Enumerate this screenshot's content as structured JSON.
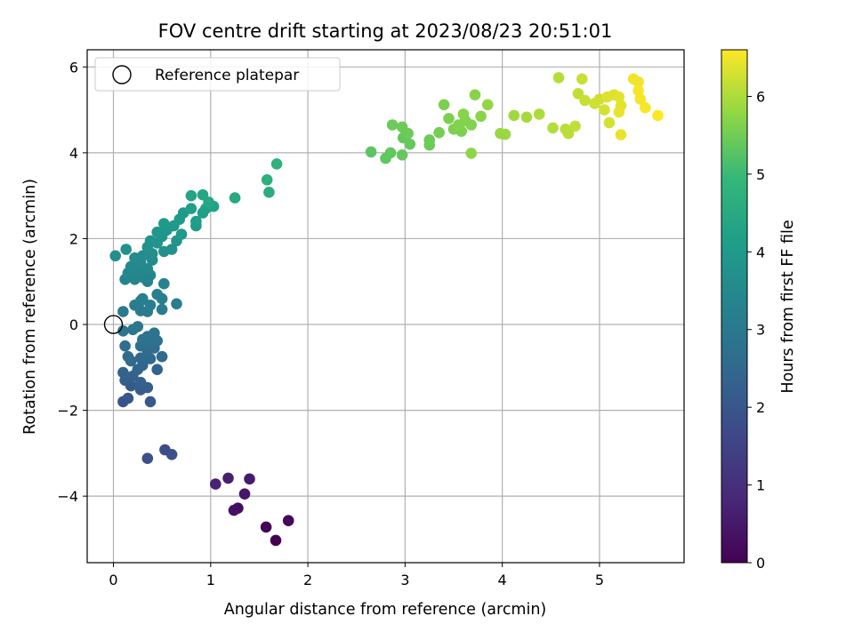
{
  "chart_data": {
    "type": "scatter",
    "title": "FOV centre drift starting at 2023/08/23 20:51:01",
    "xlabel": "Angular distance from reference (arcmin)",
    "ylabel": "Rotation from reference (arcmin)",
    "xlim": [
      -0.27,
      5.87
    ],
    "ylim": [
      -5.55,
      6.4
    ],
    "xticks": [
      0,
      1,
      2,
      3,
      4,
      5
    ],
    "yticks": [
      -4,
      -2,
      0,
      2,
      4,
      6
    ],
    "tick_labels_x": [
      "0",
      "1",
      "2",
      "3",
      "4",
      "5"
    ],
    "tick_labels_y": [
      "−4",
      "−2",
      "0",
      "2",
      "4",
      "6"
    ],
    "grid": true,
    "legend": {
      "position": "top-left",
      "entries": [
        "Reference platepar"
      ]
    },
    "colorbar": {
      "label": "Hours from first FF file",
      "colormap": "viridis",
      "range": [
        0,
        6.6
      ],
      "ticks": [
        0,
        1,
        2,
        3,
        4,
        5,
        6
      ],
      "tick_labels": [
        "0",
        "1",
        "2",
        "3",
        "4",
        "5",
        "6"
      ]
    },
    "reference_point": {
      "x": 0,
      "y": 0
    },
    "points": [
      [
        1.67,
        -5.03,
        0.0
      ],
      [
        1.57,
        -4.72,
        0.08
      ],
      [
        1.8,
        -4.57,
        0.15
      ],
      [
        1.28,
        -4.28,
        0.25
      ],
      [
        1.24,
        -4.33,
        0.33
      ],
      [
        1.35,
        -3.95,
        0.45
      ],
      [
        1.4,
        -3.6,
        0.55
      ],
      [
        1.18,
        -3.58,
        0.65
      ],
      [
        1.05,
        -3.72,
        0.75
      ],
      [
        0.53,
        -2.92,
        1.75
      ],
      [
        0.6,
        -3.03,
        1.8
      ],
      [
        0.35,
        -3.12,
        1.85
      ],
      [
        0.1,
        -1.8,
        1.95
      ],
      [
        0.15,
        -1.72,
        2.0
      ],
      [
        0.38,
        -1.8,
        2.05
      ],
      [
        0.18,
        -1.43,
        2.1
      ],
      [
        0.28,
        -1.52,
        2.15
      ],
      [
        0.35,
        -1.47,
        2.2
      ],
      [
        0.12,
        -1.3,
        2.25
      ],
      [
        0.2,
        -1.2,
        2.3
      ],
      [
        0.28,
        -1.35,
        2.3
      ],
      [
        0.1,
        -1.12,
        2.35
      ],
      [
        0.25,
        -1.05,
        2.4
      ],
      [
        0.45,
        -1.05,
        2.4
      ],
      [
        0.3,
        -0.95,
        2.45
      ],
      [
        0.18,
        -0.85,
        2.5
      ],
      [
        0.28,
        -0.78,
        2.5
      ],
      [
        0.5,
        -0.75,
        2.55
      ],
      [
        0.38,
        -0.8,
        2.55
      ],
      [
        0.15,
        -0.75,
        2.6
      ],
      [
        0.35,
        -0.6,
        2.6
      ],
      [
        0.42,
        -0.55,
        2.65
      ],
      [
        0.28,
        -0.5,
        2.7
      ],
      [
        0.12,
        -0.5,
        2.7
      ],
      [
        0.38,
        -0.4,
        2.75
      ],
      [
        0.45,
        -0.38,
        2.75
      ],
      [
        0.3,
        -0.35,
        2.8
      ],
      [
        0.35,
        -0.28,
        2.8
      ],
      [
        0.42,
        -0.2,
        2.85
      ],
      [
        0.1,
        -0.15,
        2.9
      ],
      [
        0.2,
        -0.12,
        2.9
      ],
      [
        0.25,
        -0.05,
        2.95
      ],
      [
        0.1,
        0.3,
        3.0
      ],
      [
        0.28,
        0.32,
        3.05
      ],
      [
        0.35,
        0.3,
        3.05
      ],
      [
        0.5,
        0.35,
        3.1
      ],
      [
        0.22,
        0.45,
        3.1
      ],
      [
        0.38,
        0.45,
        3.15
      ],
      [
        0.65,
        0.48,
        3.15
      ],
      [
        0.28,
        0.55,
        3.2
      ],
      [
        0.5,
        0.6,
        3.2
      ],
      [
        0.3,
        0.6,
        3.25
      ],
      [
        0.45,
        0.7,
        3.25
      ],
      [
        0.52,
        0.95,
        3.3
      ],
      [
        0.35,
        1.0,
        3.3
      ],
      [
        0.12,
        1.05,
        3.35
      ],
      [
        0.22,
        1.05,
        3.35
      ],
      [
        0.3,
        1.1,
        3.4
      ],
      [
        0.38,
        1.15,
        3.4
      ],
      [
        0.15,
        1.2,
        3.45
      ],
      [
        0.25,
        1.25,
        3.45
      ],
      [
        0.35,
        1.3,
        3.5
      ],
      [
        0.18,
        1.35,
        3.5
      ],
      [
        0.28,
        1.45,
        3.55
      ],
      [
        0.4,
        1.5,
        3.55
      ],
      [
        0.22,
        1.55,
        3.6
      ],
      [
        0.3,
        1.6,
        3.6
      ],
      [
        0.02,
        1.6,
        3.65
      ],
      [
        0.4,
        1.65,
        3.65
      ],
      [
        0.13,
        1.75,
        3.7
      ],
      [
        0.35,
        1.8,
        3.7
      ],
      [
        0.52,
        1.7,
        3.75
      ],
      [
        0.6,
        1.75,
        3.75
      ],
      [
        0.45,
        1.9,
        3.8
      ],
      [
        0.38,
        1.95,
        3.8
      ],
      [
        0.5,
        2.05,
        3.85
      ],
      [
        0.65,
        1.95,
        3.85
      ],
      [
        0.45,
        2.15,
        3.9
      ],
      [
        0.55,
        2.2,
        3.9
      ],
      [
        0.7,
        2.1,
        3.95
      ],
      [
        0.62,
        2.3,
        3.95
      ],
      [
        0.52,
        2.35,
        4.0
      ],
      [
        0.68,
        2.45,
        4.0
      ],
      [
        0.85,
        2.3,
        4.05
      ],
      [
        0.72,
        2.6,
        4.05
      ],
      [
        0.85,
        2.4,
        4.1
      ],
      [
        0.92,
        2.6,
        4.1
      ],
      [
        0.8,
        2.7,
        4.15
      ],
      [
        0.95,
        2.7,
        4.2
      ],
      [
        1.03,
        2.75,
        4.25
      ],
      [
        0.8,
        3.0,
        4.3
      ],
      [
        0.92,
        3.02,
        4.35
      ],
      [
        0.98,
        2.85,
        4.4
      ],
      [
        1.25,
        2.95,
        4.45
      ],
      [
        1.6,
        3.08,
        4.6
      ],
      [
        1.58,
        3.37,
        4.7
      ],
      [
        1.68,
        3.74,
        4.8
      ],
      [
        2.65,
        4.02,
        5.3
      ],
      [
        2.8,
        3.87,
        5.35
      ],
      [
        2.85,
        4.0,
        5.35
      ],
      [
        2.97,
        3.95,
        5.4
      ],
      [
        3.25,
        4.18,
        5.45
      ],
      [
        3.05,
        4.2,
        5.4
      ],
      [
        2.98,
        4.35,
        5.4
      ],
      [
        3.25,
        4.3,
        5.45
      ],
      [
        3.03,
        4.45,
        5.45
      ],
      [
        2.87,
        4.65,
        5.45
      ],
      [
        2.97,
        4.6,
        5.45
      ],
      [
        3.35,
        4.47,
        5.55
      ],
      [
        3.4,
        5.12,
        5.6
      ],
      [
        3.5,
        4.55,
        5.6
      ],
      [
        3.58,
        4.5,
        5.6
      ],
      [
        3.45,
        4.8,
        5.6
      ],
      [
        3.55,
        4.65,
        5.65
      ],
      [
        3.62,
        4.75,
        5.65
      ],
      [
        3.68,
        4.65,
        5.65
      ],
      [
        3.6,
        4.9,
        5.7
      ],
      [
        3.72,
        5.35,
        5.7
      ],
      [
        3.78,
        4.85,
        5.7
      ],
      [
        3.68,
        3.99,
        5.75
      ],
      [
        3.85,
        5.12,
        5.8
      ],
      [
        3.98,
        4.45,
        5.85
      ],
      [
        4.03,
        4.43,
        5.85
      ],
      [
        4.12,
        4.87,
        5.9
      ],
      [
        4.25,
        4.83,
        5.95
      ],
      [
        4.38,
        4.9,
        6.0
      ],
      [
        4.52,
        4.58,
        6.05
      ],
      [
        4.58,
        5.75,
        6.05
      ],
      [
        4.65,
        4.55,
        6.1
      ],
      [
        4.68,
        4.45,
        6.1
      ],
      [
        4.75,
        4.62,
        6.15
      ],
      [
        4.78,
        5.38,
        6.15
      ],
      [
        4.82,
        5.72,
        6.2
      ],
      [
        4.85,
        5.22,
        6.2
      ],
      [
        4.95,
        5.15,
        6.25
      ],
      [
        5.0,
        5.25,
        6.25
      ],
      [
        5.05,
        5.0,
        6.3
      ],
      [
        5.1,
        4.7,
        6.3
      ],
      [
        5.08,
        5.3,
        6.35
      ],
      [
        5.15,
        5.35,
        6.35
      ],
      [
        5.2,
        5.3,
        6.4
      ],
      [
        5.22,
        5.1,
        6.4
      ],
      [
        5.2,
        4.95,
        6.45
      ],
      [
        5.22,
        4.42,
        6.45
      ],
      [
        5.35,
        5.72,
        6.5
      ],
      [
        5.4,
        5.65,
        6.5
      ],
      [
        5.4,
        5.45,
        6.55
      ],
      [
        5.42,
        5.25,
        6.55
      ],
      [
        5.47,
        5.05,
        6.55
      ],
      [
        5.6,
        4.87,
        6.6
      ]
    ]
  }
}
